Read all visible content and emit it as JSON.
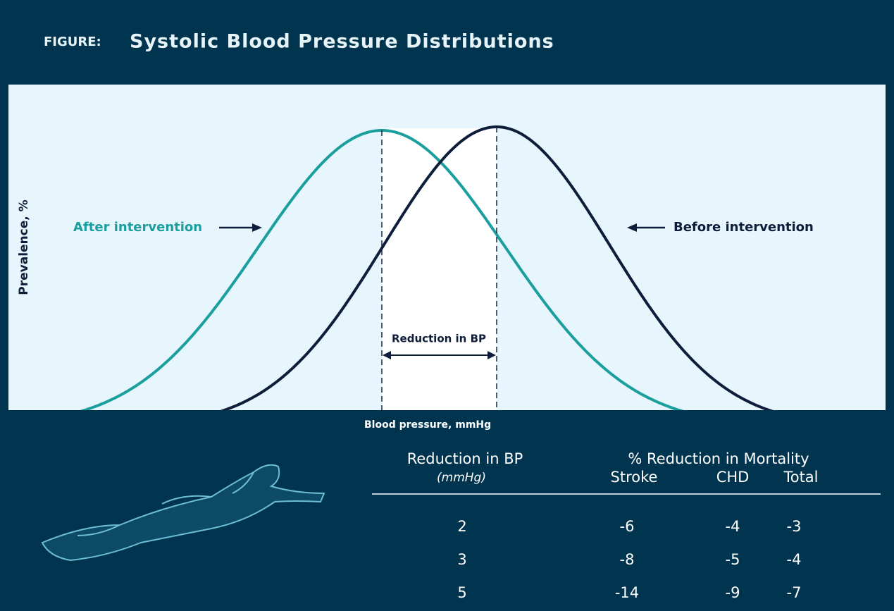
{
  "figure_label": "FIGURE:",
  "title": "Systolic Blood Pressure Distributions",
  "y_axis_label": "Prevalence, %",
  "x_axis_label": "Blood pressure, mmHg",
  "annotations": {
    "after": "After intervention",
    "before": "Before intervention",
    "reduction": "Reduction in BP"
  },
  "table": {
    "first_header": "Reduction in BP",
    "first_unit": "(mmHg)",
    "group_header": "% Reduction in Mortality",
    "columns": [
      "Stroke",
      "CHD",
      "Total"
    ],
    "rows": [
      [
        2,
        -6,
        -4,
        -3
      ],
      [
        3,
        -8,
        -5,
        -4
      ],
      [
        5,
        -14,
        -9,
        -7
      ]
    ]
  }
}
